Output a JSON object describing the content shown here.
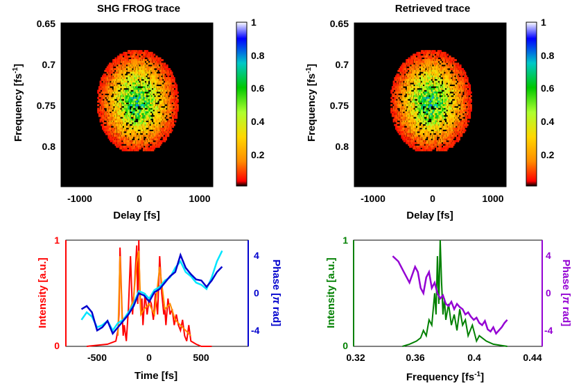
{
  "chart_data": [
    {
      "type": "heatmap",
      "title": "SHG FROG trace",
      "xlabel": "Delay [fs]",
      "ylabel": "Frequency [fs^-1]",
      "xlim": [
        -1300,
        1300
      ],
      "ylim": [
        0.65,
        0.85
      ],
      "x_ticks": [
        "-1000",
        "0",
        "1000"
      ],
      "y_ticks": [
        "0.65",
        "0.7",
        "0.75",
        "0.8"
      ],
      "colorbar_ticks": [
        "1",
        "0.8",
        "0.6",
        "0.4",
        "0.2"
      ],
      "colormap": "hot-to-jet",
      "background": "#000000",
      "distribution": {
        "center_delay": 0,
        "center_frequency": 0.745,
        "delay_halfwidth": 700,
        "frequency_halfwidth": 0.04,
        "peak": 1.0
      }
    },
    {
      "type": "heatmap",
      "title": "Retrieved trace",
      "xlabel": "Delay [fs]",
      "ylabel": "Frequency [fs^-1]",
      "xlim": [
        -1300,
        1300
      ],
      "ylim": [
        0.65,
        0.85
      ],
      "x_ticks": [
        "-1000",
        "0",
        "1000"
      ],
      "y_ticks": [
        "0.65",
        "0.7",
        "0.75",
        "0.8"
      ],
      "colorbar_ticks": [
        "1",
        "0.8",
        "0.6",
        "0.4",
        "0.2"
      ],
      "colormap": "hot-to-jet",
      "background": "#000000",
      "distribution": {
        "center_delay": 0,
        "center_frequency": 0.745,
        "delay_halfwidth": 700,
        "frequency_halfwidth": 0.04,
        "peak": 1.0
      }
    },
    {
      "type": "line",
      "xlabel": "Time [fs]",
      "ylabel_left": "Intensity [a.u.]",
      "ylabel_right": "Phase [",
      "ylabel_right_symbol": "π",
      "ylabel_right_suffix": " rad]",
      "xlim": [
        -800,
        950
      ],
      "ylim_left": [
        0,
        1
      ],
      "ylim_right": [
        -5,
        5
      ],
      "x_ticks": [
        "-500",
        "0",
        "500"
      ],
      "y_ticks_left": [
        "0",
        "1"
      ],
      "y_ticks_right": [
        "4",
        "0",
        "-4"
      ],
      "series": [
        {
          "axis": "left",
          "color": "#ff0000",
          "x": [
            -600,
            -400,
            -320,
            -300,
            -290,
            -280,
            -260,
            -250,
            -240,
            -220,
            -200,
            -180,
            -160,
            -140,
            -120,
            -110,
            -100,
            -90,
            -80,
            -70,
            -60,
            -40,
            -20,
            0,
            20,
            40,
            60,
            80,
            100,
            120,
            140,
            150,
            160,
            180,
            200,
            220,
            240,
            260,
            280,
            300,
            320,
            340,
            360,
            380,
            400,
            450,
            500,
            600
          ],
          "y": [
            0.0,
            0.02,
            0.05,
            0.15,
            0.3,
            0.93,
            0.3,
            0.1,
            0.2,
            0.05,
            0.35,
            0.85,
            0.3,
            0.6,
            0.95,
            0.4,
            1.0,
            0.5,
            0.3,
            0.45,
            0.2,
            0.5,
            0.3,
            0.45,
            0.4,
            0.25,
            0.5,
            0.3,
            0.85,
            0.5,
            0.3,
            0.35,
            0.2,
            0.45,
            0.3,
            0.35,
            0.2,
            0.3,
            0.2,
            0.15,
            0.25,
            0.1,
            0.05,
            0.2,
            0.05,
            0.02,
            0.0,
            0.0
          ]
        },
        {
          "axis": "left",
          "color": "#ff8c00",
          "x": [
            -300,
            -280,
            -260,
            -200,
            -150,
            -120,
            -100,
            -80,
            -50,
            0,
            50,
            100,
            150,
            200,
            250,
            300,
            350,
            400
          ],
          "y": [
            0.1,
            0.85,
            0.25,
            0.3,
            0.45,
            0.8,
            0.9,
            0.3,
            0.35,
            0.4,
            0.3,
            0.75,
            0.35,
            0.4,
            0.25,
            0.2,
            0.15,
            0.1
          ]
        },
        {
          "axis": "right",
          "color": "#00e5ff",
          "x": [
            -650,
            -600,
            -550,
            -500,
            -450,
            -400,
            -350,
            -300,
            -250,
            -200,
            -150,
            -100,
            -50,
            0,
            50,
            100,
            150,
            200,
            250,
            300,
            350,
            400,
            450,
            500,
            550,
            600,
            650,
            700
          ],
          "y": [
            -2.5,
            -1.8,
            -2.2,
            -3.2,
            -3.0,
            -2.6,
            -3.5,
            -2.8,
            -2.5,
            -1.8,
            -1.0,
            0.2,
            0.0,
            -0.5,
            0.3,
            0.6,
            1.2,
            1.5,
            2.4,
            3.0,
            2.0,
            1.6,
            1.0,
            0.8,
            0.4,
            1.5,
            3.0,
            4.0
          ]
        },
        {
          "axis": "right",
          "color": "#0000cd",
          "x": [
            -650,
            -600,
            -550,
            -500,
            -450,
            -400,
            -350,
            -300,
            -250,
            -200,
            -150,
            -100,
            -50,
            0,
            50,
            100,
            150,
            200,
            250,
            300,
            350,
            400,
            450,
            500,
            550,
            600,
            650,
            700
          ],
          "y": [
            -1.5,
            -1.2,
            -1.8,
            -3.5,
            -3.2,
            -2.6,
            -3.8,
            -3.2,
            -2.6,
            -2.0,
            -1.2,
            0.0,
            -0.2,
            -0.8,
            0.1,
            0.4,
            1.0,
            1.6,
            2.0,
            3.6,
            2.4,
            1.8,
            1.3,
            1.2,
            0.6,
            1.2,
            2.0,
            2.5
          ]
        }
      ]
    },
    {
      "type": "line",
      "xlabel": "Frequency [fs",
      "xlabel_sup": "-1",
      "xlabel_suffix": "]",
      "ylabel_left": "Intensity [a.u.]",
      "ylabel_right": "Phase [",
      "ylabel_right_symbol": "π",
      "ylabel_right_suffix": " rad]",
      "xlim": [
        0.31,
        0.445
      ],
      "ylim_left": [
        0,
        1
      ],
      "ylim_right": [
        -5,
        5
      ],
      "x_ticks": [
        "0.32",
        "0.36",
        "0.4",
        "0.44"
      ],
      "y_ticks_left": [
        "0",
        "1"
      ],
      "y_ticks_right": [
        "4",
        "0",
        "-4"
      ],
      "series": [
        {
          "axis": "left",
          "color": "#008000",
          "x": [
            0.345,
            0.35,
            0.355,
            0.358,
            0.36,
            0.362,
            0.364,
            0.366,
            0.368,
            0.369,
            0.37,
            0.371,
            0.372,
            0.373,
            0.374,
            0.375,
            0.376,
            0.378,
            0.38,
            0.382,
            0.384,
            0.386,
            0.388,
            0.39,
            0.392,
            0.395,
            0.398,
            0.4,
            0.405,
            0.41,
            0.415,
            0.42
          ],
          "y": [
            0.0,
            0.02,
            0.05,
            0.08,
            0.15,
            0.1,
            0.25,
            0.2,
            0.5,
            0.3,
            0.85,
            0.4,
            1.0,
            0.6,
            0.3,
            0.45,
            0.25,
            0.4,
            0.2,
            0.3,
            0.15,
            0.35,
            0.2,
            0.25,
            0.1,
            0.2,
            0.05,
            0.1,
            0.05,
            0.02,
            0.01,
            0.0
          ]
        },
        {
          "axis": "right",
          "color": "#9400d3",
          "x": [
            0.338,
            0.342,
            0.346,
            0.35,
            0.354,
            0.356,
            0.358,
            0.36,
            0.362,
            0.364,
            0.366,
            0.368,
            0.37,
            0.372,
            0.374,
            0.376,
            0.378,
            0.38,
            0.382,
            0.384,
            0.386,
            0.388,
            0.39,
            0.392,
            0.394,
            0.396,
            0.398,
            0.4,
            0.402,
            0.404,
            0.406,
            0.408,
            0.41,
            0.412,
            0.414,
            0.416,
            0.418,
            0.42
          ],
          "y": [
            3.5,
            3.0,
            2.0,
            1.0,
            2.5,
            2.0,
            0.5,
            0.0,
            1.5,
            2.0,
            0.5,
            1.0,
            0.0,
            -0.5,
            -0.2,
            -1.0,
            -1.2,
            -0.8,
            -1.5,
            -1.0,
            -1.3,
            -1.5,
            -2.0,
            -1.8,
            -2.2,
            -2.5,
            -2.3,
            -2.8,
            -3.0,
            -2.6,
            -3.4,
            -3.6,
            -3.2,
            -3.8,
            -3.5,
            -3.2,
            -2.8,
            -2.5
          ]
        }
      ]
    }
  ]
}
